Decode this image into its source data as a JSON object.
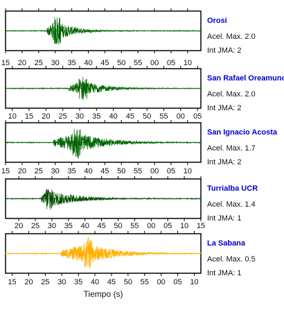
{
  "chart_data": {
    "type": "line",
    "xlabel": "Tiempo (s)",
    "panels": [
      {
        "station": "Orosi",
        "accel_label": "Acel. Max. 2.0",
        "jma_label": "Int JMA: 2",
        "color": "#006400",
        "tick_labels": [
          "15",
          "20",
          "25",
          "30",
          "35",
          "40",
          "45",
          "50",
          "55",
          "00",
          "05",
          "10"
        ],
        "x_start": 13,
        "x_range": [
          13,
          72
        ],
        "onset": 25.5,
        "peak_time": 28.5,
        "peak_amplitude": 0.9,
        "duration": 18,
        "noise": 0.02
      },
      {
        "station": "San Rafael Oreamuno",
        "accel_label": "Acel. Max. 2.0",
        "jma_label": "Int JMA: 2",
        "color": "#006400",
        "tick_labels": [
          "10",
          "15",
          "20",
          "25",
          "30",
          "35",
          "40",
          "45",
          "50",
          "55",
          "00",
          "05"
        ],
        "x_start": 10,
        "x_range": [
          8,
          66
        ],
        "onset": 26.8,
        "peak_time": 31,
        "peak_amplitude": 0.7,
        "duration": 22,
        "noise": 0.02
      },
      {
        "station": "San Ignacio Acosta",
        "accel_label": "Acel. Max. 1.7",
        "jma_label": "Int JMA: 2",
        "color": "#006400",
        "tick_labels": [
          "15",
          "20",
          "25",
          "30",
          "35",
          "40",
          "45",
          "50",
          "55",
          "00",
          "05",
          "10"
        ],
        "x_start": 15,
        "x_range": [
          15,
          74
        ],
        "onset": 29.5,
        "peak_time": 36.5,
        "peak_amplitude": 0.9,
        "duration": 30,
        "noise": 0.02
      },
      {
        "station": "Turrialba UCR",
        "accel_label": "Acel. Max. 1.4",
        "jma_label": "Int JMA: 1",
        "color": "#004d00",
        "tick_labels": [
          "20",
          "25",
          "30",
          "35",
          "40",
          "45",
          "50",
          "55",
          "00",
          "05",
          "10",
          "15"
        ],
        "x_start": 20,
        "x_range": [
          16,
          75
        ],
        "onset": 26.8,
        "peak_time": 29,
        "peak_amplitude": 0.8,
        "duration": 30,
        "noise": 0.02
      },
      {
        "station": "La Sabana",
        "accel_label": "Acel. Max. 0.5",
        "jma_label": "Int JMA: 1",
        "color": "#ffb000",
        "tick_labels": [
          "15",
          "20",
          "25",
          "30",
          "35",
          "40",
          "45",
          "50",
          "55",
          "00",
          "05",
          "10"
        ],
        "x_start": 15,
        "x_range": [
          13,
          72
        ],
        "onset": 29.8,
        "peak_time": 38,
        "peak_amplitude": 0.9,
        "duration": 30,
        "noise": 0.02
      }
    ]
  }
}
